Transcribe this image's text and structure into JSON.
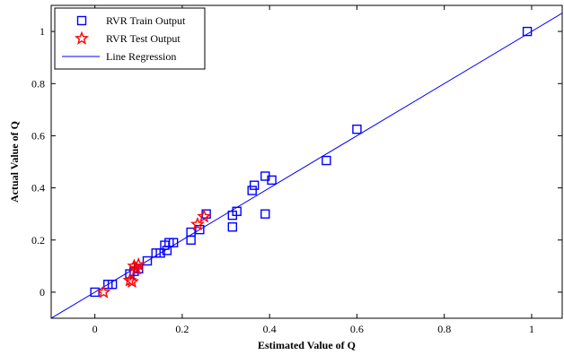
{
  "chart_data": {
    "type": "scatter",
    "title": "",
    "xlabel": "Estimated Value of Q",
    "ylabel": "Actual Value of Q",
    "xlim": [
      -0.1,
      1.07
    ],
    "ylim": [
      -0.1,
      1.1
    ],
    "xticks": [
      0,
      0.2,
      0.4,
      0.6,
      0.8,
      1
    ],
    "yticks": [
      0,
      0.2,
      0.4,
      0.6,
      0.8,
      1
    ],
    "xtick_labels": [
      "0",
      "0.2",
      "0.4",
      "0.6",
      "0.8",
      "1"
    ],
    "ytick_labels": [
      "0",
      "0.2",
      "0.4",
      "0.6",
      "0.8",
      "1"
    ],
    "grid": false,
    "legend_position": "top-left",
    "series": [
      {
        "name": "RVR Train Output",
        "marker": "square",
        "color": "#0000ff",
        "points": [
          [
            0.0,
            0.0
          ],
          [
            0.03,
            0.03
          ],
          [
            0.04,
            0.03
          ],
          [
            0.08,
            0.07
          ],
          [
            0.09,
            0.08
          ],
          [
            0.1,
            0.09
          ],
          [
            0.12,
            0.12
          ],
          [
            0.14,
            0.15
          ],
          [
            0.15,
            0.15
          ],
          [
            0.16,
            0.18
          ],
          [
            0.165,
            0.16
          ],
          [
            0.17,
            0.19
          ],
          [
            0.18,
            0.19
          ],
          [
            0.22,
            0.2
          ],
          [
            0.22,
            0.23
          ],
          [
            0.24,
            0.24
          ],
          [
            0.255,
            0.3
          ],
          [
            0.315,
            0.295
          ],
          [
            0.315,
            0.25
          ],
          [
            0.325,
            0.31
          ],
          [
            0.36,
            0.39
          ],
          [
            0.365,
            0.41
          ],
          [
            0.39,
            0.445
          ],
          [
            0.39,
            0.3
          ],
          [
            0.405,
            0.43
          ],
          [
            0.53,
            0.505
          ],
          [
            0.6,
            0.625
          ],
          [
            0.99,
            1.0
          ]
        ]
      },
      {
        "name": "RVR Test Output",
        "marker": "star",
        "color": "#ff0000",
        "points": [
          [
            0.02,
            0.0
          ],
          [
            0.08,
            0.045
          ],
          [
            0.085,
            0.04
          ],
          [
            0.09,
            0.1
          ],
          [
            0.1,
            0.105
          ],
          [
            0.095,
            0.09
          ],
          [
            0.235,
            0.26
          ],
          [
            0.25,
            0.29
          ]
        ]
      },
      {
        "name": "Line Regression",
        "marker": "line",
        "color": "#0000ff",
        "points": [
          [
            -0.1,
            -0.1
          ],
          [
            1.07,
            1.07
          ]
        ]
      }
    ]
  }
}
